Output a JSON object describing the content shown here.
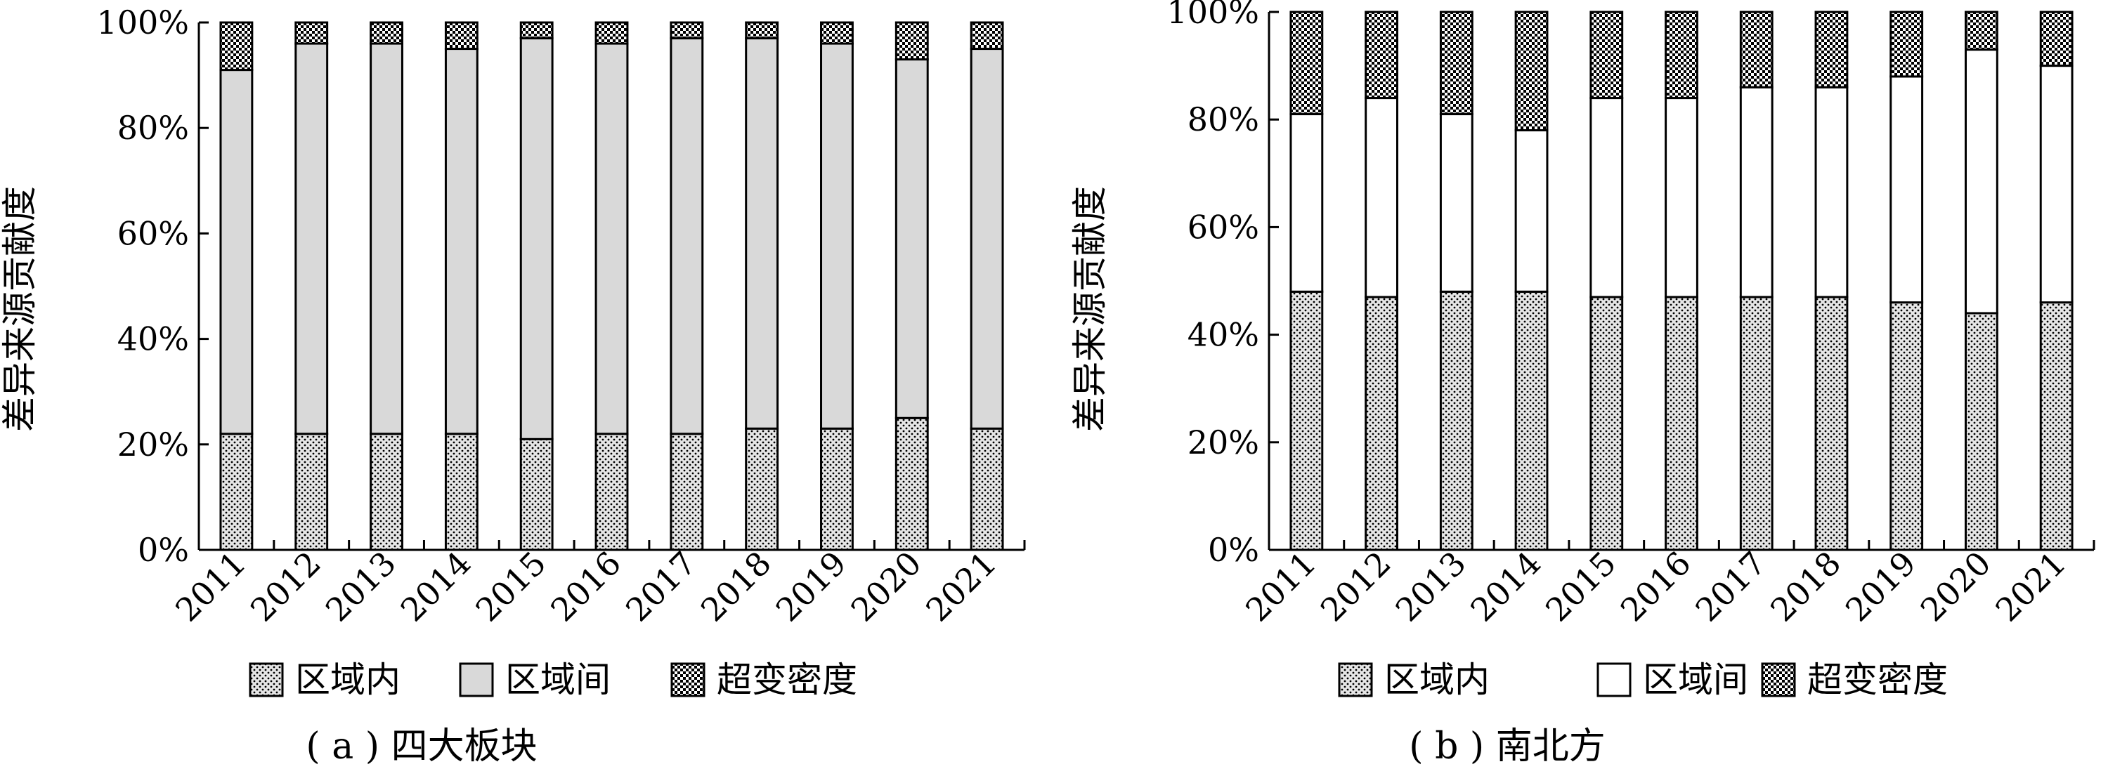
{
  "colors": {
    "axis": "#000000",
    "intra_fill": "#d9d9d9",
    "inter_fill_a": "#d9d9d9",
    "inter_fill_b": "#ffffff",
    "overlap_fill": "#cccccc",
    "bar_stroke": "#000000"
  },
  "chart_data": [
    {
      "type": "bar",
      "stacked": true,
      "caption": "( a ) 四大板块",
      "ylabel": "差异来源贡献度",
      "ylim": [
        0,
        100
      ],
      "yticks": [
        0,
        20,
        40,
        60,
        80,
        100
      ],
      "ytick_labels": [
        "0%",
        "20%",
        "40%",
        "60%",
        "80%",
        "100%"
      ],
      "categories": [
        "2011",
        "2012",
        "2013",
        "2014",
        "2015",
        "2016",
        "2017",
        "2018",
        "2019",
        "2020",
        "2021"
      ],
      "series": [
        {
          "name": "区域内",
          "values": [
            22,
            22,
            22,
            22,
            21,
            22,
            22,
            23,
            23,
            25,
            23
          ],
          "fill": "dots"
        },
        {
          "name": "区域间",
          "values": [
            69,
            74,
            74,
            73,
            76,
            74,
            75,
            74,
            73,
            68,
            72
          ],
          "fill": "gray"
        },
        {
          "name": "超变密度",
          "values": [
            9,
            4,
            4,
            5,
            3,
            4,
            3,
            3,
            4,
            7,
            5
          ],
          "fill": "checker"
        }
      ],
      "legend": "bottom"
    },
    {
      "type": "bar",
      "stacked": true,
      "caption": "( b ) 南北方",
      "ylabel": "差异来源贡献度",
      "ylim": [
        0,
        100
      ],
      "yticks": [
        0,
        20,
        40,
        60,
        80,
        100
      ],
      "ytick_labels": [
        "0%",
        "20%",
        "40%",
        "60%",
        "80%",
        "100%"
      ],
      "categories": [
        "2011",
        "2012",
        "2013",
        "2014",
        "2015",
        "2016",
        "2017",
        "2018",
        "2019",
        "2020",
        "2021"
      ],
      "series": [
        {
          "name": "区域内",
          "values": [
            48,
            47,
            48,
            48,
            47,
            47,
            47,
            47,
            46,
            44,
            46
          ],
          "fill": "dots"
        },
        {
          "name": "区域间",
          "values": [
            33,
            37,
            33,
            30,
            37,
            37,
            39,
            39,
            42,
            49,
            44
          ],
          "fill": "white"
        },
        {
          "name": "超变密度",
          "values": [
            19,
            16,
            19,
            22,
            16,
            16,
            14,
            14,
            12,
            7,
            10
          ],
          "fill": "checker"
        }
      ],
      "legend": "bottom"
    }
  ]
}
